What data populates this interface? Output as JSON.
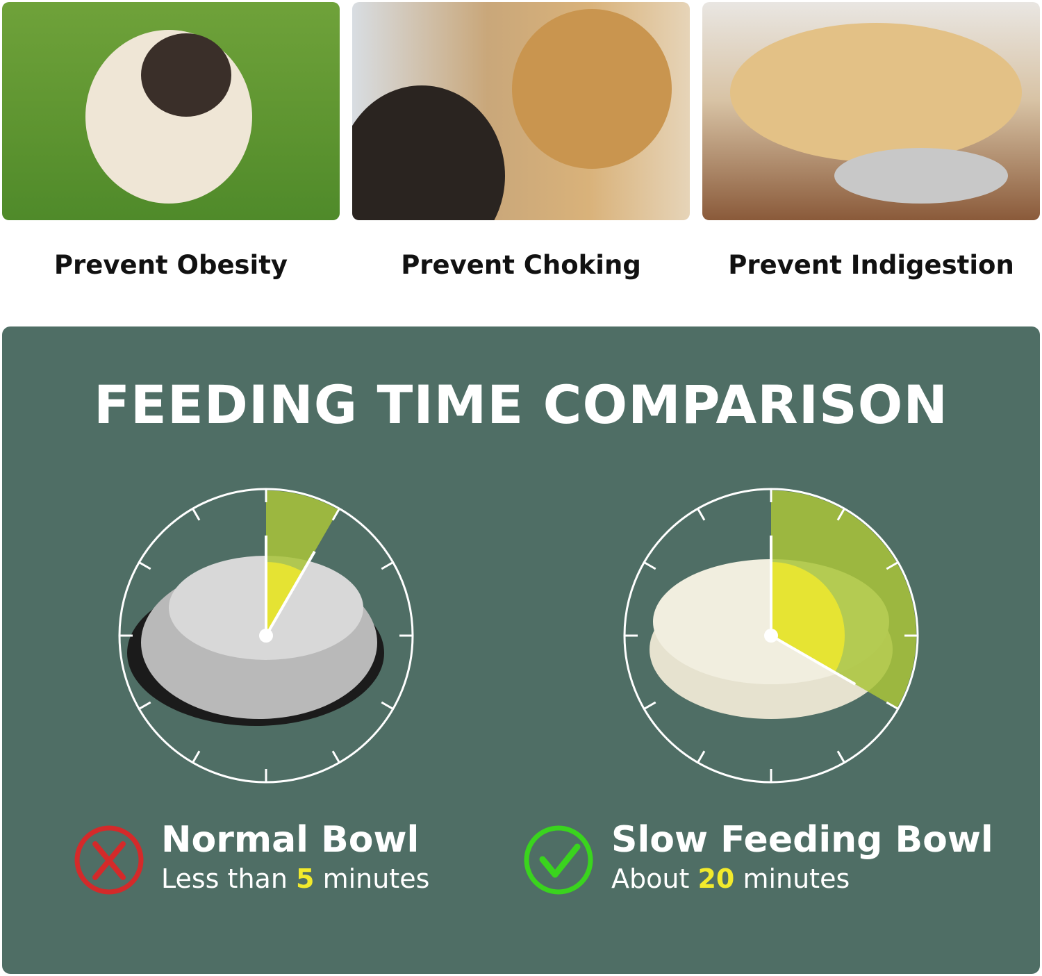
{
  "benefits": [
    {
      "caption": "Prevent Obesity",
      "image": "pug-on-grass"
    },
    {
      "caption": "Prevent Choking",
      "image": "golden-retriever-mouth-check"
    },
    {
      "caption": "Prevent Indigestion",
      "image": "labrador-lying-by-bowl"
    }
  ],
  "comparison": {
    "title": "FEEDING TIME COMPARISON",
    "colors": {
      "panel": "#4f6e65",
      "wedge": "#a9c43a",
      "highlight": "#f2ea2c",
      "bad": "#d42a2a",
      "good": "#3ad41e"
    },
    "normal": {
      "name": "Normal Bowl",
      "prefix": "Less than",
      "minutes": "5",
      "suffix": "minutes",
      "minutes_value": 5,
      "icon": "x-circle-icon"
    },
    "slow": {
      "name": "Slow Feeding Bowl",
      "prefix": "About",
      "minutes": "20",
      "suffix": "minutes",
      "minutes_value": 20,
      "icon": "check-circle-icon"
    }
  }
}
